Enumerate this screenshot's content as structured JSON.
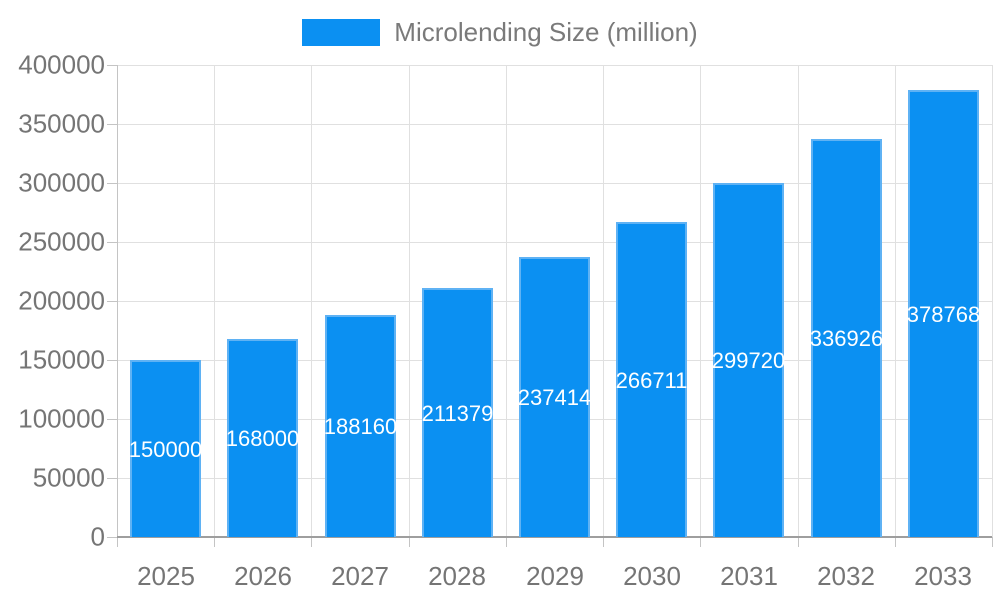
{
  "legend": {
    "label": "Microlending Size (million)"
  },
  "colors": {
    "bar": "#0b90f2",
    "bar_border": "#5fb2f4",
    "grid": "#e0e0e0",
    "axis_line": "#c4c4c4",
    "baseline": "#9e9e9e",
    "tick_label": "#757575",
    "legend_text": "#7a7a7a",
    "value_label": "#ffffff",
    "background": "#ffffff"
  },
  "chart_data": {
    "type": "bar",
    "title": "",
    "xlabel": "",
    "ylabel": "",
    "legend_label": "Microlending Size (million)",
    "legend_position": "top",
    "grid": true,
    "categories": [
      "2025",
      "2026",
      "2027",
      "2028",
      "2029",
      "2030",
      "2031",
      "2032",
      "2033"
    ],
    "values": [
      150000,
      168000,
      188160,
      211379,
      237414,
      266711,
      299720,
      336926,
      378768
    ],
    "value_labels_position": "inside-center",
    "ylim": [
      0,
      400000
    ],
    "ytick_step": 50000,
    "ytick_labels": [
      "0",
      "50000",
      "100000",
      "150000",
      "200000",
      "250000",
      "300000",
      "350000",
      "400000"
    ]
  }
}
